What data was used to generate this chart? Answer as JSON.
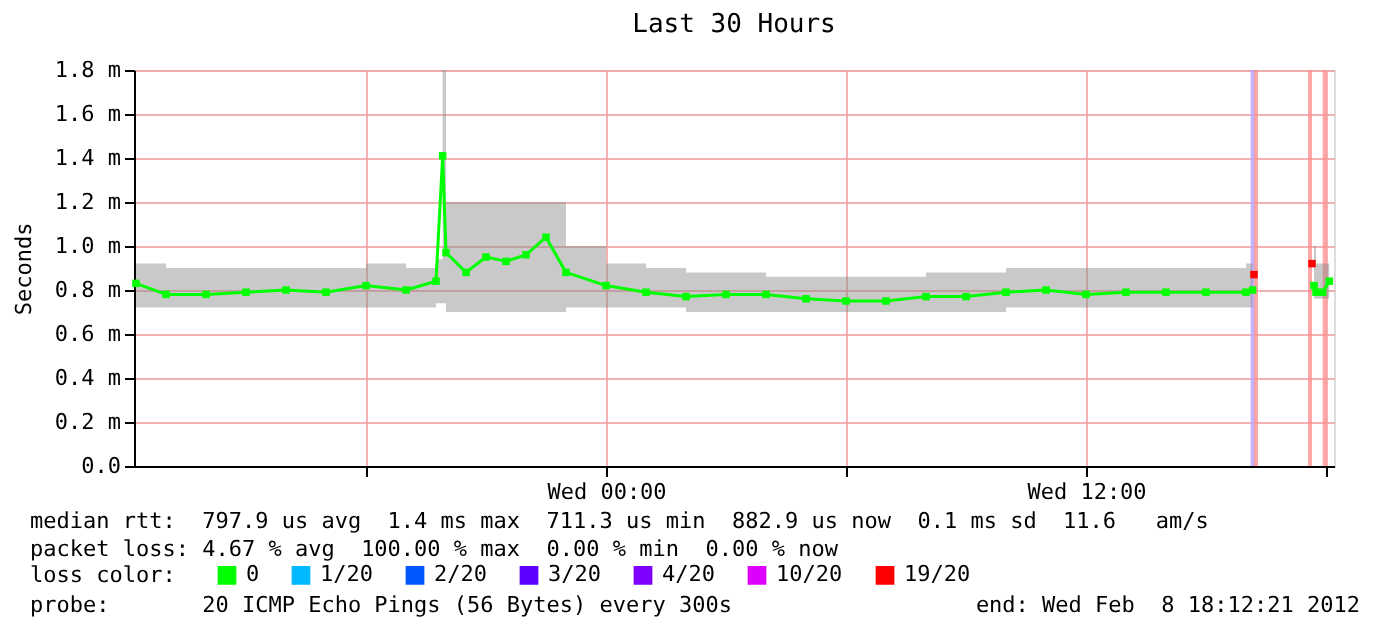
{
  "chart_data": {
    "type": "line",
    "title": "Last 30 Hours",
    "ylabel": "Seconds",
    "xlim": [
      "2012-02-07T12:12",
      "2012-02-08T18:12"
    ],
    "xticks": [
      {
        "value": "2012-02-07T18:00",
        "label": null
      },
      {
        "value": "2012-02-08T00:00",
        "label": "Wed 00:00"
      },
      {
        "value": "2012-02-08T06:00",
        "label": null
      },
      {
        "value": "2012-02-08T12:00",
        "label": "Wed 12:00"
      },
      {
        "value": "2012-02-08T18:00",
        "label": null
      }
    ],
    "ylim": [
      0,
      1.8
    ],
    "yticks": [
      {
        "value": 0,
        "label": "0.0"
      },
      {
        "value": 0.2,
        "label": "0.2 m"
      },
      {
        "value": 0.4,
        "label": "0.4 m"
      },
      {
        "value": 0.6,
        "label": "0.6 m"
      },
      {
        "value": 0.8,
        "label": "0.8 m"
      },
      {
        "value": 1.0,
        "label": "1.0 m"
      },
      {
        "value": 1.2,
        "label": "1.2 m"
      },
      {
        "value": 1.4,
        "label": "1.4 m"
      },
      {
        "value": 1.6,
        "label": "1.6 m"
      },
      {
        "value": 1.8,
        "label": "1.8 m"
      }
    ],
    "grid": true,
    "legend": "bottom",
    "legend_title": "loss color:",
    "marker": "square",
    "line_style": "solid",
    "series": [
      {
        "name": "0",
        "color": "#00ff00",
        "x": [
          "2012-02-07T12:15",
          "2012-02-07T13:00",
          "2012-02-07T14:00",
          "2012-02-07T15:00",
          "2012-02-07T16:00",
          "2012-02-07T17:00",
          "2012-02-07T18:00",
          "2012-02-07T19:00",
          "2012-02-07T19:45",
          "2012-02-07T19:55",
          "2012-02-07T20:00",
          "2012-02-07T20:30",
          "2012-02-07T21:00",
          "2012-02-07T21:30",
          "2012-02-07T22:00",
          "2012-02-07T22:30",
          "2012-02-07T23:00",
          "2012-02-08T00:00",
          "2012-02-08T01:00",
          "2012-02-08T02:00",
          "2012-02-08T03:00",
          "2012-02-08T04:00",
          "2012-02-08T05:00",
          "2012-02-08T06:00",
          "2012-02-08T07:00",
          "2012-02-08T08:00",
          "2012-02-08T09:00",
          "2012-02-08T10:00",
          "2012-02-08T11:00",
          "2012-02-08T12:00",
          "2012-02-08T13:00",
          "2012-02-08T14:00",
          "2012-02-08T15:00",
          "2012-02-08T16:00",
          "2012-02-08T16:10",
          "2012-02-08T17:00",
          "2012-02-08T17:42",
          "2012-02-08T17:45",
          "2012-02-08T17:55",
          "2012-02-08T18:05"
        ],
        "values": [
          0.83,
          0.78,
          0.78,
          0.79,
          0.8,
          0.79,
          0.82,
          0.8,
          0.84,
          1.41,
          0.97,
          0.88,
          0.95,
          0.93,
          0.96,
          1.04,
          0.88,
          0.82,
          0.79,
          0.77,
          0.78,
          0.78,
          0.76,
          0.75,
          0.75,
          0.77,
          0.77,
          0.79,
          0.8,
          0.78,
          0.79,
          0.79,
          0.79,
          0.79,
          0.8,
          null,
          0.82,
          0.79,
          0.79,
          0.84
        ],
        "lower": [
          0.72,
          0.72,
          0.72,
          0.72,
          0.72,
          0.72,
          0.72,
          0.72,
          0.74,
          0.74,
          0.7,
          0.7,
          0.7,
          0.7,
          0.7,
          0.7,
          0.72,
          0.72,
          0.72,
          0.7,
          0.7,
          0.7,
          0.7,
          0.7,
          0.7,
          0.7,
          0.7,
          0.72,
          0.72,
          0.72,
          0.72,
          0.72,
          0.72,
          0.72,
          0.72,
          null,
          0.76,
          0.76,
          0.76,
          0.76
        ],
        "upper": [
          0.92,
          0.9,
          0.9,
          0.9,
          0.9,
          0.9,
          0.92,
          0.9,
          0.94,
          1.8,
          1.2,
          1.2,
          1.2,
          1.2,
          1.2,
          1.2,
          1.0,
          0.92,
          0.9,
          0.88,
          0.88,
          0.86,
          0.86,
          0.86,
          0.86,
          0.88,
          0.88,
          0.9,
          0.9,
          0.9,
          0.9,
          0.9,
          0.9,
          0.92,
          0.94,
          null,
          1.0,
          0.92,
          0.92,
          0.92
        ]
      },
      {
        "name": "1/20",
        "color": "#00b8ff",
        "type": "scatter"
      },
      {
        "name": "2/20",
        "color": "#0059ff",
        "type": "scatter"
      },
      {
        "name": "3/20",
        "color": "#5e00ff",
        "type": "scatter"
      },
      {
        "name": "4/20",
        "color": "#7e00ff",
        "type": "scatter"
      },
      {
        "name": "10/20",
        "color": "#dd00ff",
        "type": "scatter"
      },
      {
        "name": "19/20",
        "color": "#ff0000",
        "type": "scatter",
        "x": [
          "2012-02-08T16:12",
          "2012-02-08T17:39"
        ],
        "values": [
          0.87,
          0.92
        ]
      }
    ],
    "ref_lines": [
      {
        "axis": "x",
        "value": "2012-02-08T16:10",
        "color": "#b4a0ff"
      },
      {
        "axis": "x",
        "value": "2012-02-08T16:15",
        "color": "#ff9090"
      },
      {
        "axis": "x",
        "value": "2012-02-08T17:36",
        "color": "#ff9090"
      },
      {
        "axis": "x",
        "value": "2012-02-08T17:58",
        "color": "#ff9090"
      }
    ],
    "annotations": [
      "median rtt:  797.9 us avg  1.4 ms max  711.3 us min  882.9 us now  0.1 ms sd  11.6   am/s",
      "packet loss: 4.67 % avg  100.00 % max  0.00 % min  0.00 % now",
      "probe:       20 ICMP Echo Pings (56 Bytes) every 300s",
      "end: Wed Feb  8 18:12:21 2012"
    ]
  }
}
